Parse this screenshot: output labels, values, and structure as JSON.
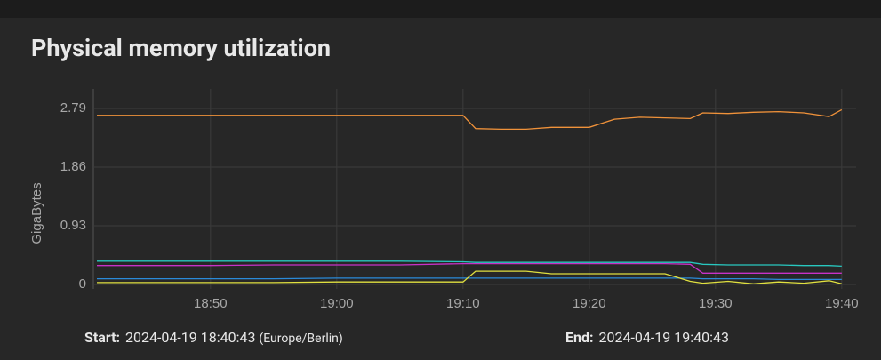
{
  "chart_data": {
    "type": "line",
    "title": "Physical memory utilization",
    "y_label": "GigaBytes",
    "x": [
      "18:41",
      "18:45",
      "18:50",
      "18:55",
      "19:00",
      "19:05",
      "19:10",
      "19:11",
      "19:13",
      "19:15",
      "19:17",
      "19:20",
      "19:22",
      "19:24",
      "19:26",
      "19:28",
      "19:29",
      "19:31",
      "19:33",
      "19:35",
      "19:37",
      "19:39",
      "19:40"
    ],
    "series": [
      {
        "color": "#f0923a",
        "values": [
          2.68,
          2.68,
          2.68,
          2.68,
          2.68,
          2.68,
          2.68,
          2.47,
          2.46,
          2.46,
          2.49,
          2.49,
          2.62,
          2.65,
          2.64,
          2.63,
          2.72,
          2.71,
          2.73,
          2.74,
          2.72,
          2.66,
          2.77
        ]
      },
      {
        "color": "#28c8c0",
        "values": [
          0.37,
          0.37,
          0.37,
          0.37,
          0.37,
          0.37,
          0.36,
          0.35,
          0.35,
          0.35,
          0.35,
          0.35,
          0.35,
          0.35,
          0.35,
          0.35,
          0.32,
          0.31,
          0.31,
          0.31,
          0.3,
          0.3,
          0.29
        ]
      },
      {
        "color": "#c832c8",
        "values": [
          0.3,
          0.3,
          0.3,
          0.31,
          0.31,
          0.31,
          0.33,
          0.33,
          0.33,
          0.33,
          0.33,
          0.33,
          0.33,
          0.33,
          0.33,
          0.32,
          0.18,
          0.18,
          0.18,
          0.18,
          0.18,
          0.18,
          0.18
        ]
      },
      {
        "color": "#2a8ad8",
        "values": [
          0.09,
          0.09,
          0.09,
          0.09,
          0.1,
          0.1,
          0.1,
          0.1,
          0.1,
          0.1,
          0.1,
          0.1,
          0.1,
          0.1,
          0.1,
          0.1,
          0.09,
          0.09,
          0.09,
          0.08,
          0.08,
          0.08,
          0.08
        ]
      },
      {
        "color": "#e0e040",
        "values": [
          0.03,
          0.03,
          0.03,
          0.03,
          0.04,
          0.04,
          0.04,
          0.21,
          0.21,
          0.21,
          0.17,
          0.17,
          0.17,
          0.17,
          0.17,
          0.05,
          0.02,
          0.05,
          0.01,
          0.04,
          0.02,
          0.06,
          0.01
        ]
      }
    ],
    "xlim": [
      "18:40:43",
      "19:40:43"
    ],
    "xticks": [
      "18:50",
      "19:00",
      "19:10",
      "19:20",
      "19:30",
      "19:40"
    ],
    "ylim": [
      -0.07,
      3.1
    ],
    "yticks": [
      0,
      0.93,
      1.86,
      2.79
    ],
    "grid": true
  },
  "footer": {
    "start_label": "Start:",
    "start_value": "2024-04-19 18:40:43",
    "timezone": "(Europe/Berlin)",
    "end_label": "End:",
    "end_value": "2024-04-19 19:40:43"
  }
}
